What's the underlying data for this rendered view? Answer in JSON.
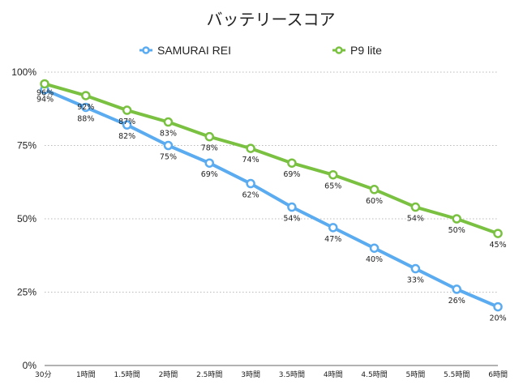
{
  "chart_data": {
    "type": "line",
    "title": "バッテリースコア",
    "categories": [
      "30分",
      "1時間",
      "1.5時間",
      "2時間",
      "2.5時間",
      "3時間",
      "3.5時間",
      "4時間",
      "4.5時間",
      "5時間",
      "5.5時間",
      "6時間"
    ],
    "series": [
      {
        "name": "SAMURAI REI",
        "color": "#5aabf0",
        "values": [
          94,
          88,
          82,
          75,
          69,
          62,
          54,
          47,
          40,
          33,
          26,
          20
        ]
      },
      {
        "name": "P9 lite",
        "color": "#7ac142",
        "values": [
          96,
          92,
          87,
          83,
          78,
          74,
          69,
          65,
          60,
          54,
          50,
          45
        ]
      }
    ],
    "ylim": [
      0,
      100
    ],
    "yticks": [
      0,
      25,
      50,
      75,
      100
    ],
    "ytick_labels": [
      "0%",
      "25%",
      "50%",
      "75%",
      "100%"
    ],
    "value_suffix": "%",
    "legend_position": "top",
    "grid": true
  }
}
